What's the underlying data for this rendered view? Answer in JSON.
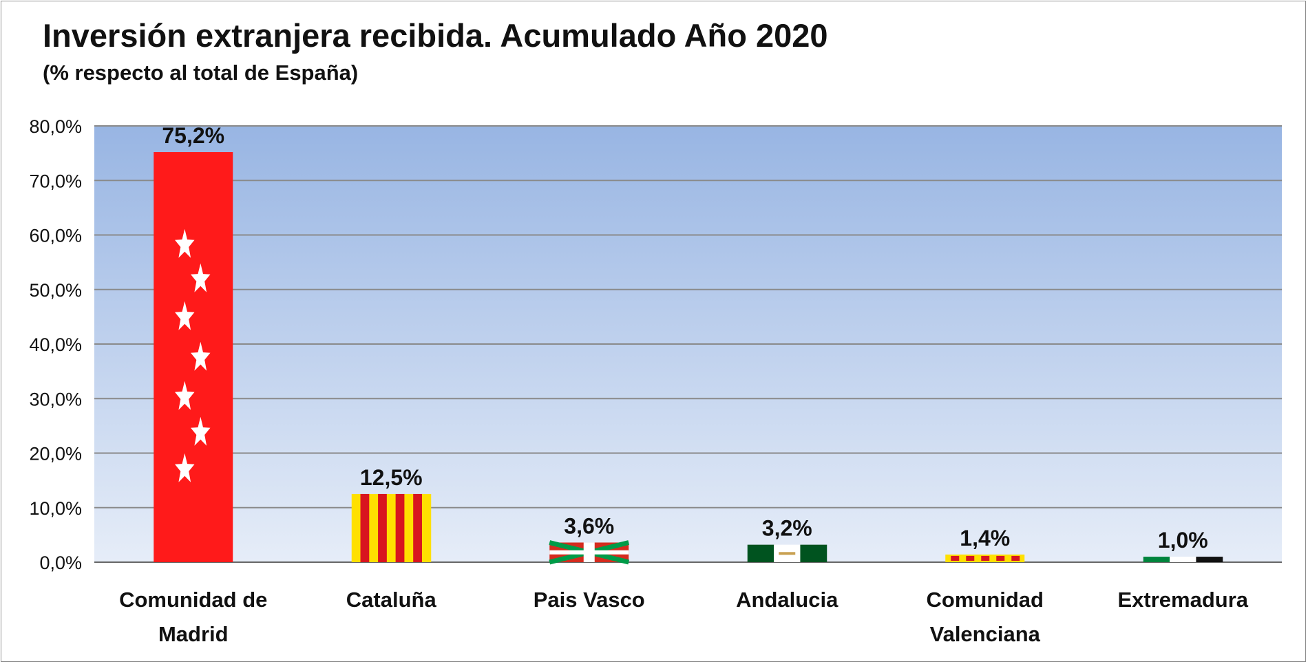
{
  "chart_data": {
    "type": "bar",
    "title": "Inversión extranjera recibida. Acumulado Año 2020",
    "subtitle": "(% respecto al total de España)",
    "xlabel": "",
    "ylabel": "",
    "ylim": [
      0,
      80
    ],
    "yticks": [
      0,
      10,
      20,
      30,
      40,
      50,
      60,
      70,
      80
    ],
    "ytick_labels": [
      "0,0%",
      "10,0%",
      "20,0%",
      "30,0%",
      "40,0%",
      "50,0%",
      "60,0%",
      "70,0%",
      "80,0%"
    ],
    "grid": true,
    "legend": "none",
    "categories": [
      [
        "Comunidad de",
        "Madrid"
      ],
      [
        "Cataluña"
      ],
      [
        "Pais Vasco"
      ],
      [
        "Andalucia"
      ],
      [
        "Comunidad",
        "Valenciana"
      ],
      [
        "Extremadura"
      ]
    ],
    "values": [
      75.2,
      12.5,
      3.6,
      3.2,
      1.4,
      1.0
    ],
    "data_labels": [
      "75,2%",
      "12,5%",
      "3,6%",
      "3,2%",
      "1,4%",
      "1,0%"
    ],
    "bar_styles": [
      "flag-madrid",
      "flag-cataluna",
      "flag-pais-vasco",
      "flag-andalucia",
      "flag-valenciana",
      "flag-extremadura"
    ],
    "colors": {
      "plot_top": "#98b5e3",
      "plot_bottom": "#e6edf8",
      "grid": "#8a8a8a",
      "madrid_red": "#ff1a1a",
      "catalan_yellow": "#ffe000",
      "catalan_red": "#d8141f",
      "basque_red": "#d52b1e",
      "basque_green": "#009b48",
      "andalucia_green": "#00531f",
      "extremadura_green": "#00843d",
      "extremadura_black": "#111111"
    }
  }
}
